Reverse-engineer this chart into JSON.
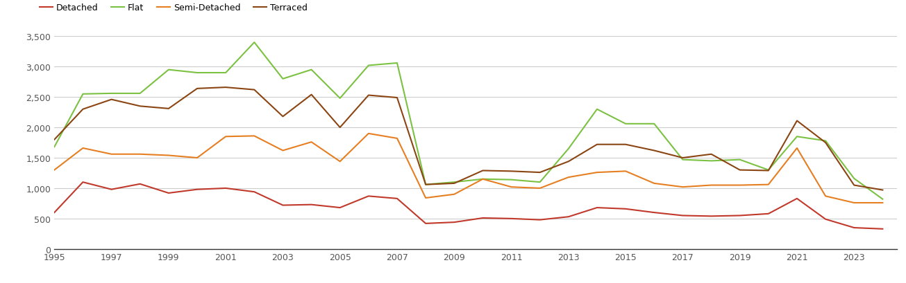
{
  "years": [
    1995,
    1996,
    1997,
    1998,
    1999,
    2000,
    2001,
    2002,
    2003,
    2004,
    2005,
    2006,
    2007,
    2008,
    2009,
    2010,
    2011,
    2012,
    2013,
    2014,
    2015,
    2016,
    2017,
    2018,
    2019,
    2020,
    2021,
    2022,
    2023,
    2024
  ],
  "detached": [
    600,
    1100,
    980,
    1070,
    920,
    980,
    1000,
    940,
    720,
    730,
    680,
    870,
    830,
    420,
    440,
    510,
    500,
    480,
    530,
    680,
    660,
    600,
    550,
    540,
    550,
    580,
    830,
    490,
    350,
    330
  ],
  "flat": [
    1680,
    2550,
    2560,
    2560,
    2950,
    2900,
    2900,
    3400,
    2800,
    2950,
    2480,
    3020,
    3060,
    1060,
    1100,
    1150,
    1140,
    1100,
    1650,
    2300,
    2060,
    2060,
    1470,
    1450,
    1470,
    1300,
    1850,
    1780,
    1160,
    820
  ],
  "semi_detached": [
    1300,
    1660,
    1560,
    1560,
    1540,
    1500,
    1850,
    1860,
    1620,
    1760,
    1440,
    1900,
    1820,
    840,
    900,
    1150,
    1020,
    1000,
    1180,
    1260,
    1280,
    1080,
    1020,
    1050,
    1050,
    1060,
    1660,
    870,
    760,
    760
  ],
  "terraced": [
    1800,
    2300,
    2460,
    2350,
    2310,
    2640,
    2660,
    2620,
    2180,
    2540,
    2000,
    2530,
    2490,
    1060,
    1080,
    1290,
    1280,
    1260,
    1440,
    1720,
    1720,
    1620,
    1500,
    1560,
    1300,
    1290,
    2110,
    1750,
    1050,
    970
  ],
  "legend_labels": [
    "Detached",
    "Flat",
    "Semi-Detached",
    "Terraced"
  ],
  "colors": {
    "detached": "#c0392b",
    "flat": "#7bc142",
    "semi_detached": "#e67e22",
    "terraced": "#8B4513"
  },
  "ylim": [
    0,
    3500
  ],
  "yticks": [
    0,
    500,
    1000,
    1500,
    2000,
    2500,
    3000,
    3500
  ],
  "ytick_labels": [
    "0",
    "500",
    "1,000",
    "1,500",
    "2,000",
    "2,500",
    "3,000",
    "3,500"
  ],
  "xticks": [
    1995,
    1997,
    1999,
    2001,
    2003,
    2005,
    2007,
    2009,
    2011,
    2013,
    2015,
    2017,
    2019,
    2021,
    2023
  ],
  "grid_color": "#cccccc",
  "background_color": "#ffffff",
  "line_width": 1.5,
  "fig_width": 13.05,
  "fig_height": 4.1,
  "dpi": 100
}
